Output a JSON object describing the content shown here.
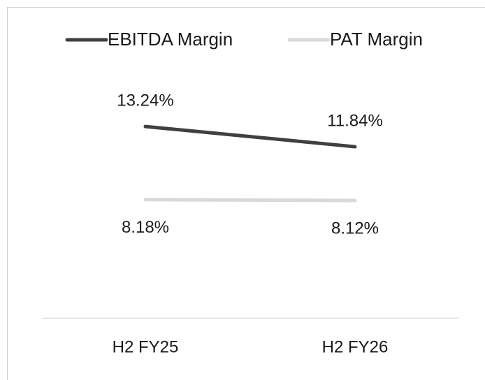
{
  "chart_data": {
    "type": "line",
    "categories": [
      "H2 FY25",
      "H2 FY26"
    ],
    "series": [
      {
        "name": "EBITDA Margin",
        "color": "#404040",
        "values": [
          13.24,
          11.84
        ],
        "value_labels": [
          "13.24%",
          "11.84%"
        ]
      },
      {
        "name": "PAT Margin",
        "color": "#d9d9d9",
        "values": [
          8.18,
          8.12
        ],
        "value_labels": [
          "8.18%",
          "8.12%"
        ]
      }
    ],
    "ylim": [
      0,
      16
    ],
    "legend": "top"
  }
}
